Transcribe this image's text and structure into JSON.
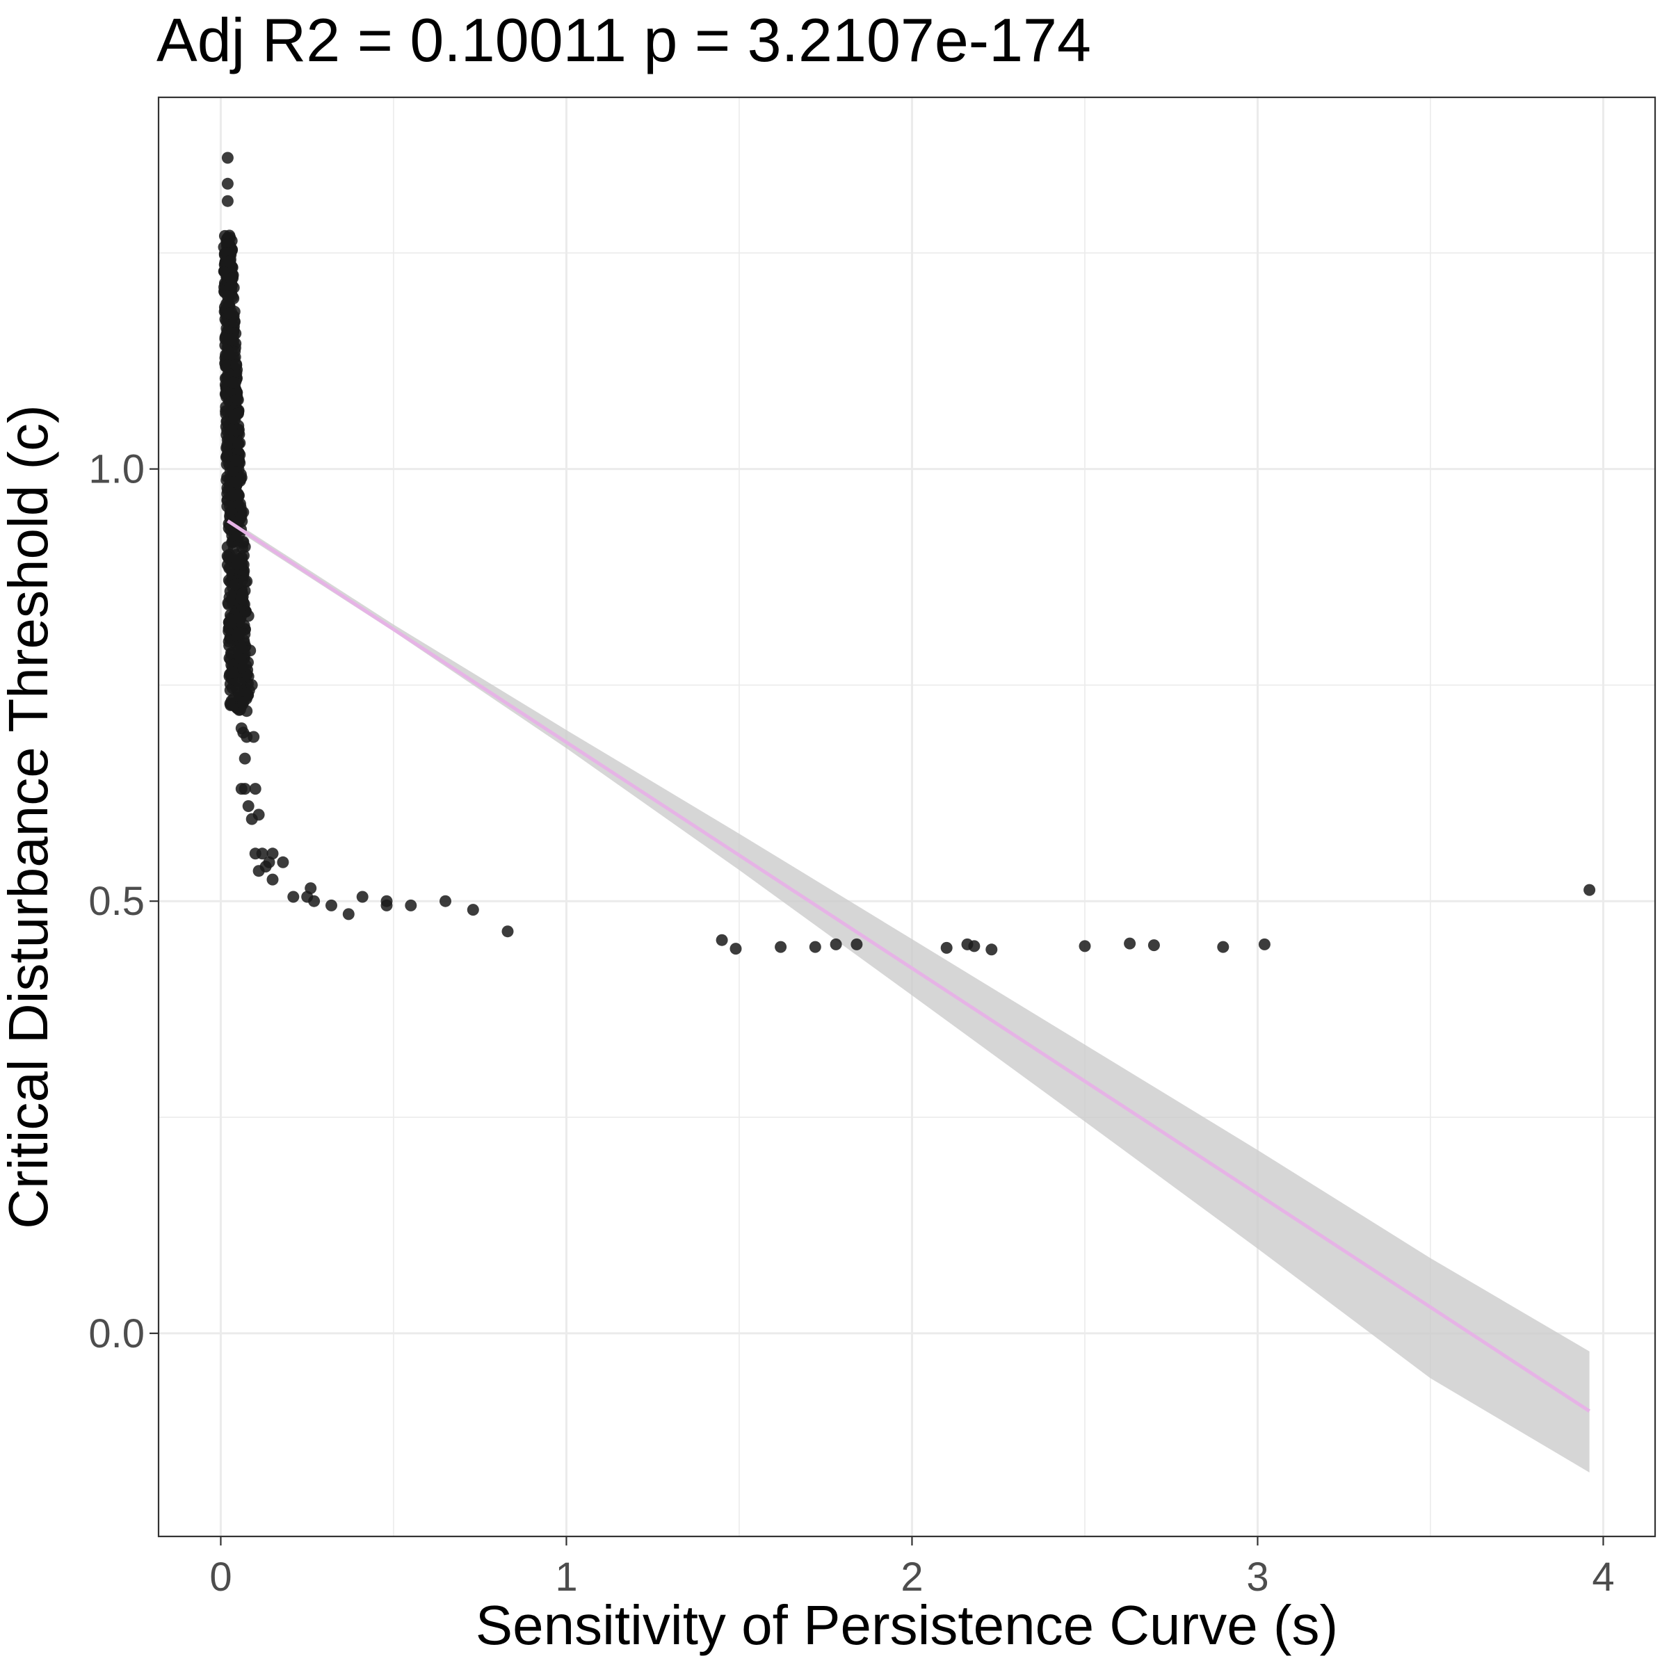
{
  "chart_data": {
    "type": "scatter",
    "title": "Adj R2 =  0.10011  p = 3.2107e-174",
    "xlabel": "Sensitivity of Persistence Curve (s)",
    "ylabel": "Critical Disturbance Threshold (c)",
    "xlim": [
      -0.18,
      4.15
    ],
    "ylim": [
      -0.235,
      1.43
    ],
    "x_ticks": [
      0,
      1,
      2,
      3,
      4
    ],
    "x_tick_labels": [
      "0",
      "1",
      "2",
      "3",
      "4"
    ],
    "y_ticks": [
      0.0,
      0.5,
      1.0
    ],
    "y_tick_labels": [
      "0.0",
      "0.5",
      "1.0"
    ],
    "grid": true,
    "legend": "none",
    "colors": {
      "points": "#1a1a1a",
      "fit_line": "#e6b3e6",
      "confidence_band": "#cccccc",
      "grid": "#ebebeb",
      "panel_border": "#333333",
      "tick_label": "#4d4d4d",
      "axis_title": "#000000"
    },
    "fit_line": {
      "x": [
        0.02,
        3.96
      ],
      "y": [
        0.94,
        -0.09
      ]
    },
    "confidence_band": {
      "x": [
        0.02,
        0.5,
        1.0,
        1.5,
        2.0,
        2.5,
        3.0,
        3.5,
        3.96
      ],
      "lower": [
        0.936,
        0.812,
        0.677,
        0.536,
        0.391,
        0.245,
        0.098,
        -0.052,
        -0.161
      ],
      "upper": [
        0.944,
        0.82,
        0.698,
        0.578,
        0.456,
        0.334,
        0.212,
        0.087,
        -0.021
      ]
    },
    "dense_cluster": {
      "y_min": 0.72,
      "y_max": 1.27,
      "x_min": 0.01,
      "x_max": 0.075,
      "sample_points": [
        [
          0.02,
          1.36
        ],
        [
          0.02,
          1.33
        ],
        [
          0.02,
          1.31
        ],
        [
          0.025,
          1.27
        ],
        [
          0.02,
          1.26
        ],
        [
          0.018,
          1.25
        ],
        [
          0.022,
          1.24
        ],
        [
          0.03,
          1.22
        ],
        [
          0.02,
          1.2
        ],
        [
          0.025,
          1.18
        ],
        [
          0.04,
          1.17
        ],
        [
          0.03,
          1.15
        ],
        [
          0.045,
          1.12
        ],
        [
          0.035,
          1.1
        ],
        [
          0.05,
          1.08
        ],
        [
          0.04,
          1.06
        ],
        [
          0.055,
          1.03
        ],
        [
          0.045,
          1.01
        ],
        [
          0.06,
          0.99
        ],
        [
          0.05,
          0.97
        ],
        [
          0.065,
          0.95
        ],
        [
          0.04,
          0.93
        ],
        [
          0.07,
          0.91
        ],
        [
          0.05,
          0.89
        ],
        [
          0.075,
          0.87
        ],
        [
          0.06,
          0.85
        ],
        [
          0.08,
          0.83
        ],
        [
          0.055,
          0.81
        ],
        [
          0.085,
          0.79
        ],
        [
          0.065,
          0.77
        ],
        [
          0.08,
          0.76
        ],
        [
          0.07,
          0.74
        ],
        [
          0.09,
          0.75
        ],
        [
          0.06,
          0.73
        ]
      ]
    },
    "scatter_points": [
      [
        0.065,
        0.73
      ],
      [
        0.075,
        0.72
      ],
      [
        0.06,
        0.7
      ],
      [
        0.075,
        0.69
      ],
      [
        0.065,
        0.695
      ],
      [
        0.095,
        0.69
      ],
      [
        0.07,
        0.665
      ],
      [
        0.06,
        0.63
      ],
      [
        0.07,
        0.63
      ],
      [
        0.1,
        0.63
      ],
      [
        0.08,
        0.61
      ],
      [
        0.11,
        0.6
      ],
      [
        0.09,
        0.595
      ],
      [
        0.1,
        0.555
      ],
      [
        0.12,
        0.555
      ],
      [
        0.15,
        0.555
      ],
      [
        0.11,
        0.535
      ],
      [
        0.13,
        0.54
      ],
      [
        0.14,
        0.545
      ],
      [
        0.18,
        0.545
      ],
      [
        0.15,
        0.525
      ],
      [
        0.21,
        0.505
      ],
      [
        0.25,
        0.505
      ],
      [
        0.26,
        0.515
      ],
      [
        0.27,
        0.5
      ],
      [
        0.32,
        0.495
      ],
      [
        0.37,
        0.485
      ],
      [
        0.41,
        0.505
      ],
      [
        0.48,
        0.5
      ],
      [
        0.48,
        0.495
      ],
      [
        0.55,
        0.495
      ],
      [
        0.65,
        0.5
      ],
      [
        0.73,
        0.49
      ],
      [
        0.83,
        0.465
      ],
      [
        1.45,
        0.455
      ],
      [
        1.49,
        0.445
      ],
      [
        1.62,
        0.447
      ],
      [
        1.72,
        0.447
      ],
      [
        1.78,
        0.45
      ],
      [
        1.84,
        0.45
      ],
      [
        2.1,
        0.446
      ],
      [
        2.16,
        0.45
      ],
      [
        2.18,
        0.448
      ],
      [
        2.23,
        0.444
      ],
      [
        2.5,
        0.448
      ],
      [
        2.63,
        0.451
      ],
      [
        2.7,
        0.449
      ],
      [
        2.9,
        0.447
      ],
      [
        3.02,
        0.45
      ],
      [
        3.96,
        0.513
      ]
    ]
  }
}
